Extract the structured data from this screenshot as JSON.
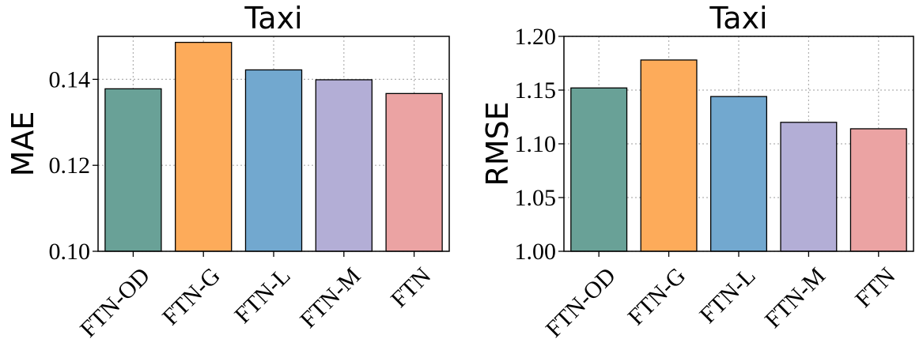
{
  "chart_data": [
    {
      "type": "bar",
      "title": "Taxi",
      "xlabel": "",
      "ylabel": "MAE",
      "categories": [
        "FTN-OD",
        "FTN-G",
        "FTN-L",
        "FTN-M",
        "FTN"
      ],
      "values": [
        0.1378,
        0.1486,
        0.1422,
        0.1399,
        0.1367
      ],
      "colors": [
        "#69a197",
        "#fdab5a",
        "#72a8cf",
        "#b3aed6",
        "#eba3a3"
      ],
      "ylim": [
        0.1,
        0.15
      ],
      "yticks": [
        "0.10",
        "0.12",
        "0.14"
      ],
      "grid": true
    },
    {
      "type": "bar",
      "title": "Taxi",
      "xlabel": "",
      "ylabel": "RMSE",
      "categories": [
        "FTN-OD",
        "FTN-G",
        "FTN-L",
        "FTN-M",
        "FTN"
      ],
      "values": [
        1.152,
        1.178,
        1.144,
        1.12,
        1.114
      ],
      "colors": [
        "#69a197",
        "#fdab5a",
        "#72a8cf",
        "#b3aed6",
        "#eba3a3"
      ],
      "ylim": [
        1.0,
        1.2
      ],
      "yticks": [
        "1.00",
        "1.05",
        "1.10",
        "1.15",
        "1.20"
      ],
      "grid": true
    }
  ]
}
